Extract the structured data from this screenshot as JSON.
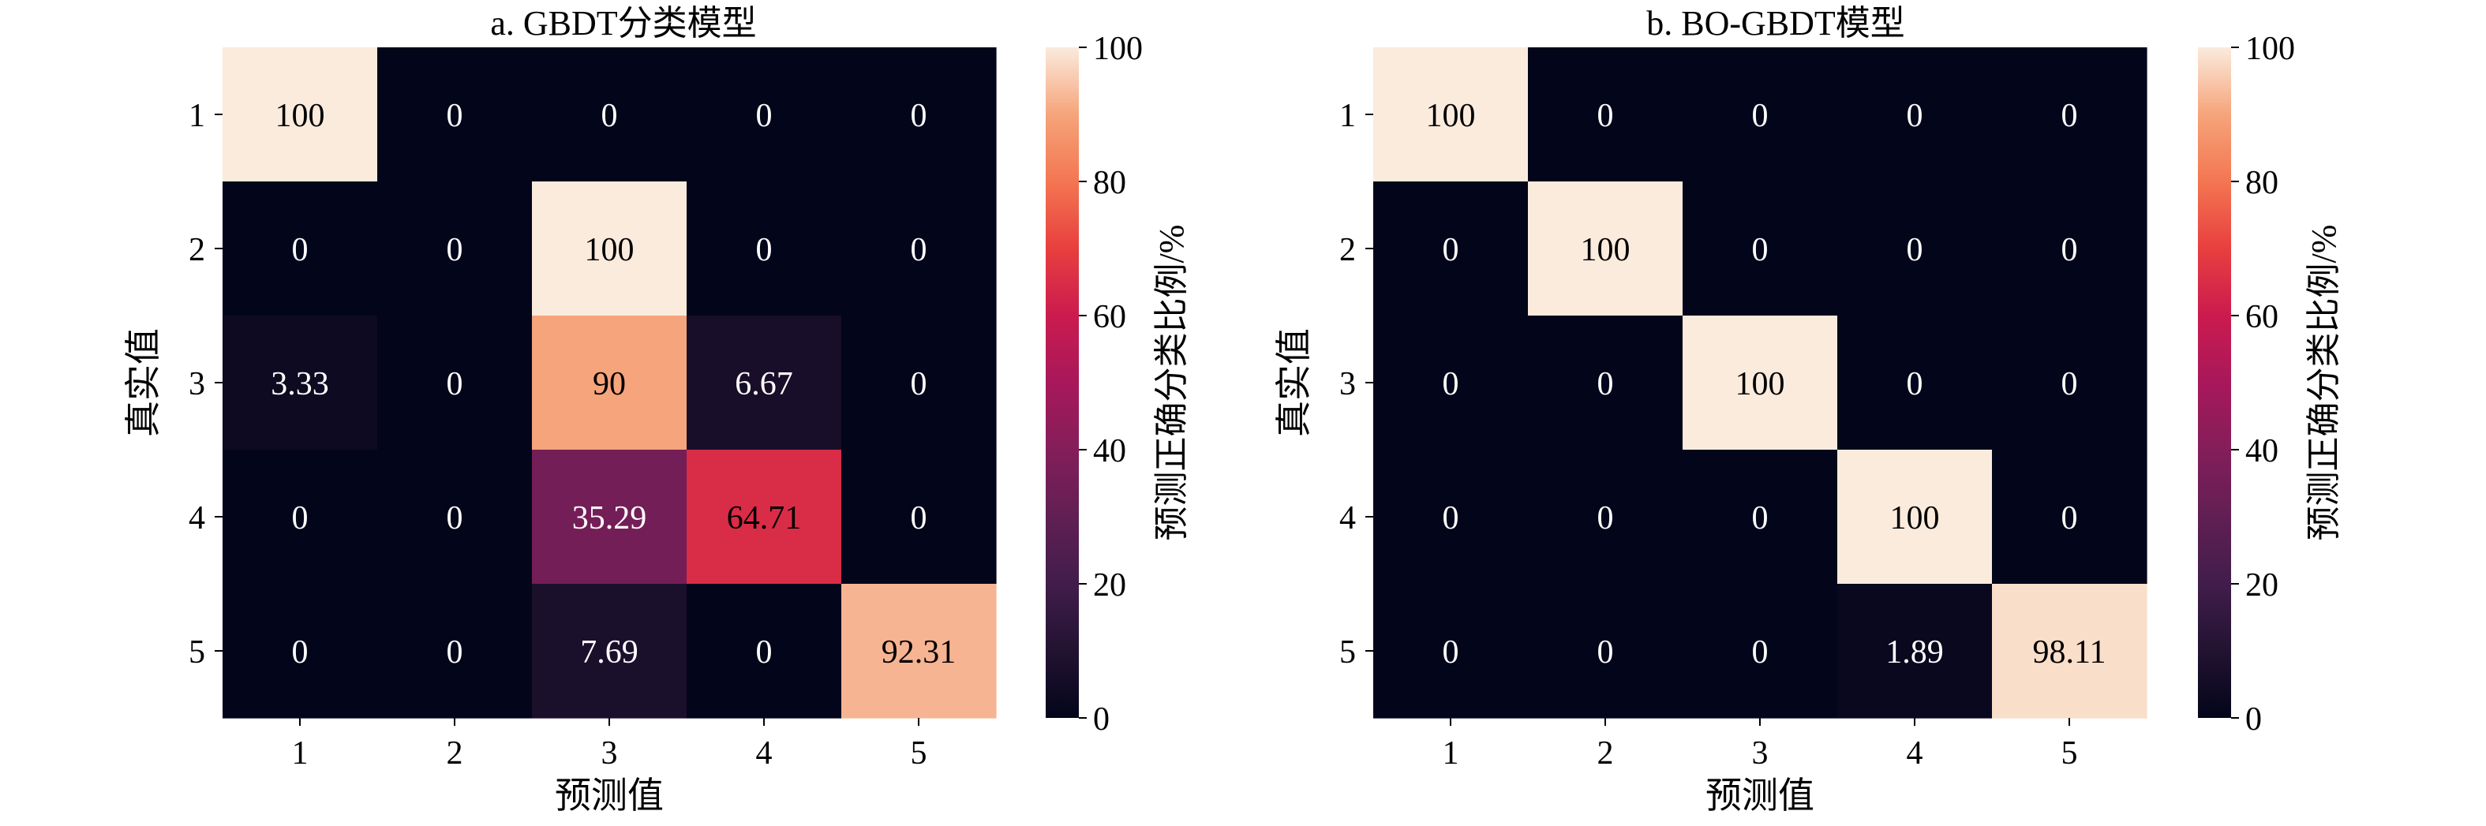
{
  "chart_data": [
    {
      "type": "heatmap",
      "title": "a. GBDT分类模型",
      "xlabel": "预测值",
      "ylabel": "真实值",
      "x_categories": [
        "1",
        "2",
        "3",
        "4",
        "5"
      ],
      "y_categories": [
        "1",
        "2",
        "3",
        "4",
        "5"
      ],
      "values": [
        [
          100,
          0,
          0,
          0,
          0
        ],
        [
          0,
          0,
          100,
          0,
          0
        ],
        [
          3.33,
          0,
          90,
          6.67,
          0
        ],
        [
          0,
          0,
          35.29,
          64.71,
          0
        ],
        [
          0,
          0,
          7.69,
          0,
          92.31
        ]
      ],
      "labels": [
        [
          "100",
          "0",
          "0",
          "0",
          "0"
        ],
        [
          "0",
          "0",
          "100",
          "0",
          "0"
        ],
        [
          "3.33",
          "0",
          "90",
          "6.67",
          "0"
        ],
        [
          "0",
          "0",
          "35.29",
          "64.71",
          "0"
        ],
        [
          "0",
          "0",
          "7.69",
          "0",
          "92.31"
        ]
      ],
      "colorbar": {
        "label": "预测正确分类比例/%",
        "range": [
          0,
          100
        ],
        "ticks": [
          "0",
          "20",
          "40",
          "60",
          "80",
          "100"
        ],
        "colormap": "rocket"
      }
    },
    {
      "type": "heatmap",
      "title": "b. BO-GBDT模型",
      "xlabel": "预测值",
      "ylabel": "真实值",
      "x_categories": [
        "1",
        "2",
        "3",
        "4",
        "5"
      ],
      "y_categories": [
        "1",
        "2",
        "3",
        "4",
        "5"
      ],
      "values": [
        [
          100,
          0,
          0,
          0,
          0
        ],
        [
          0,
          100,
          0,
          0,
          0
        ],
        [
          0,
          0,
          100,
          0,
          0
        ],
        [
          0,
          0,
          0,
          100,
          0
        ],
        [
          0,
          0,
          0,
          1.89,
          98.11
        ]
      ],
      "labels": [
        [
          "100",
          "0",
          "0",
          "0",
          "0"
        ],
        [
          "0",
          "100",
          "0",
          "0",
          "0"
        ],
        [
          "0",
          "0",
          "100",
          "0",
          "0"
        ],
        [
          "0",
          "0",
          "0",
          "100",
          "0"
        ],
        [
          "0",
          "0",
          "0",
          "1.89",
          "98.11"
        ]
      ],
      "colorbar": {
        "label": "预测正确分类比例/%",
        "range": [
          0,
          100
        ],
        "ticks": [
          "0",
          "20",
          "40",
          "60",
          "80",
          "100"
        ],
        "colormap": "rocket"
      }
    }
  ]
}
